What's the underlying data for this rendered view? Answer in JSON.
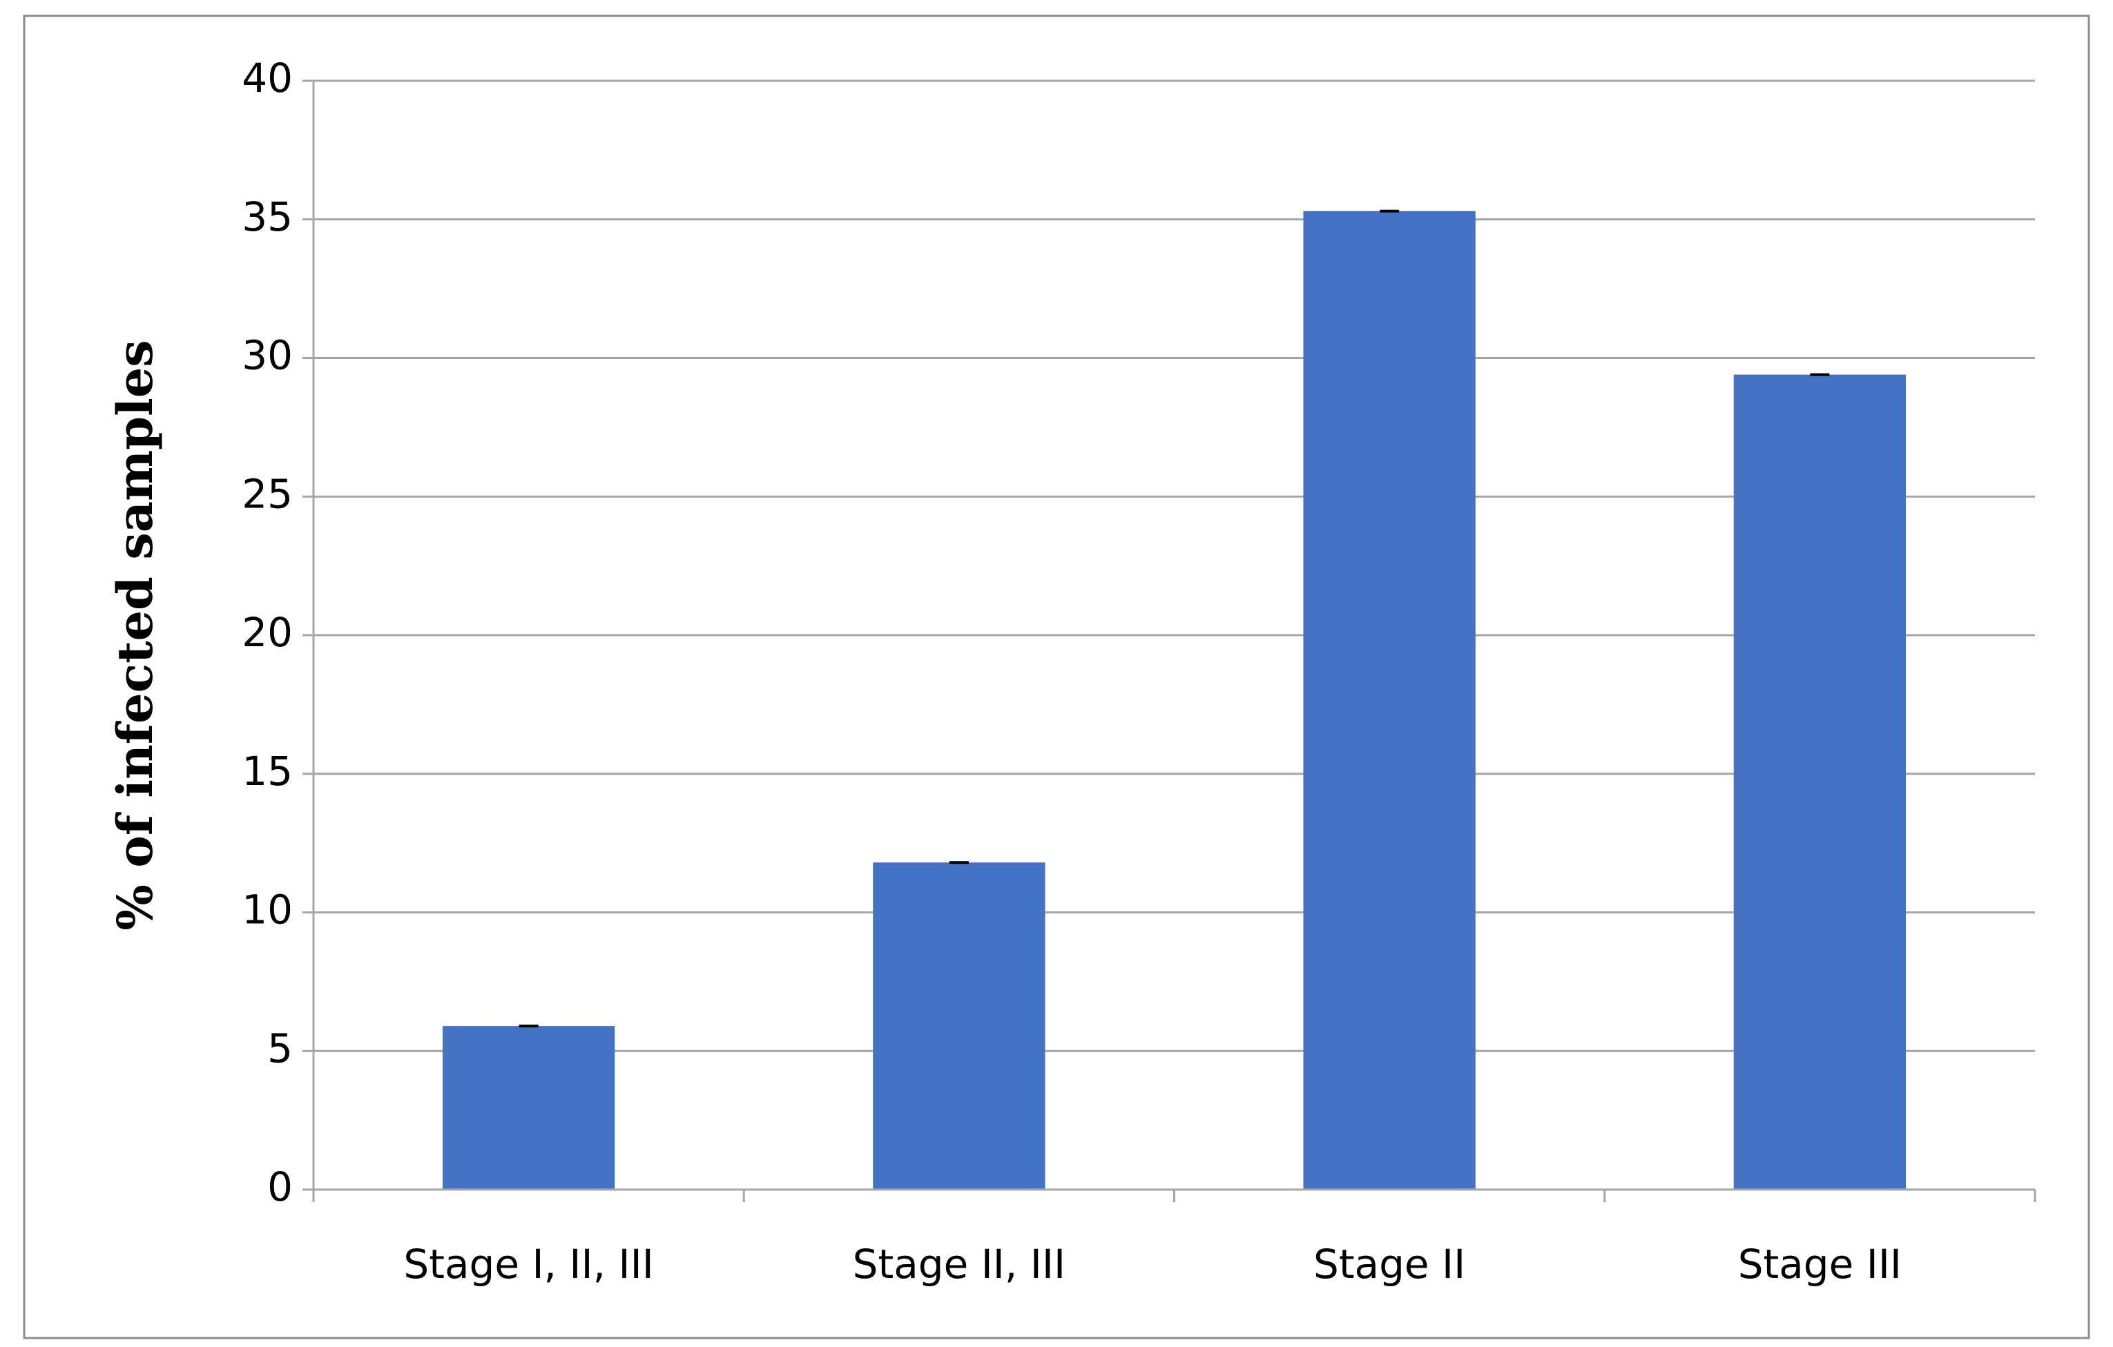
{
  "chart_data": {
    "type": "bar",
    "y_axis_label": "% of infected samples",
    "categories": [
      "Stage I, II, III",
      "Stage II, III",
      "Stage II",
      "Stage III"
    ],
    "values": [
      5.9,
      11.8,
      35.3,
      29.4
    ],
    "errors": [
      0,
      0,
      0,
      0
    ],
    "color": "#4472c4",
    "ylim": [
      0,
      40
    ],
    "yticks": [
      0,
      5,
      10,
      15,
      20,
      25,
      30,
      35,
      40
    ],
    "grid": true
  }
}
